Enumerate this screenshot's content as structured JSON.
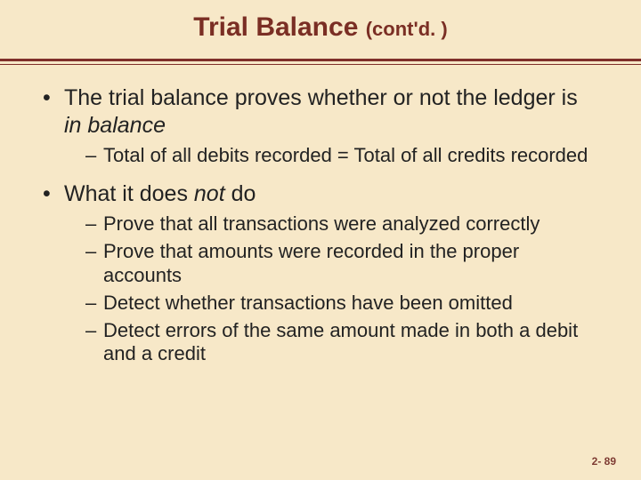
{
  "colors": {
    "background": "#f7e8c8",
    "title_text": "#7a2e24",
    "rule": "#802f2a",
    "body_text": "#222222",
    "footer_text": "#7e3b33"
  },
  "typography": {
    "title_size_pt": 30,
    "title_sub_size_pt": 22,
    "bullet1_size_pt": 25,
    "bullet2_size_pt": 22,
    "footer_size_pt": 12,
    "font_family": "Arial"
  },
  "title": {
    "main": "Trial Balance ",
    "sub": "(cont'd. )"
  },
  "bullets": [
    {
      "pre": "The trial balance proves whether or not the ledger is ",
      "ital": "in balance",
      "post": "",
      "sub": [
        "Total of all debits recorded = Total of all credits recorded"
      ]
    },
    {
      "pre": "What it does ",
      "ital": "not",
      "post": " do",
      "sub": [
        "Prove that all transactions were analyzed correctly",
        "Prove that amounts were recorded in the proper accounts",
        "Detect whether transactions have been omitted",
        "Detect errors of the same amount made in both a debit and a credit"
      ]
    }
  ],
  "footer": "2- 89"
}
